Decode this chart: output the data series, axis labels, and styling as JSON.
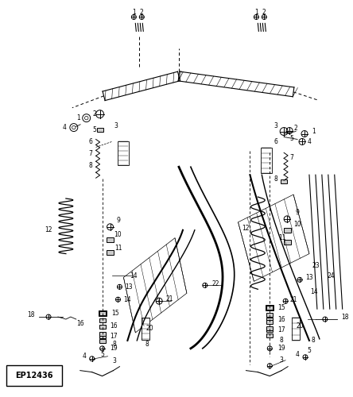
{
  "diagram_id": "EP12436",
  "bg_color": "#ffffff",
  "line_color": "#1a1a1a",
  "figsize": [
    4.44,
    5.0
  ],
  "dpi": 100,
  "font_size_parts": 5.5,
  "font_size_id": 7,
  "gray": "#888888",
  "darkgray": "#555555"
}
